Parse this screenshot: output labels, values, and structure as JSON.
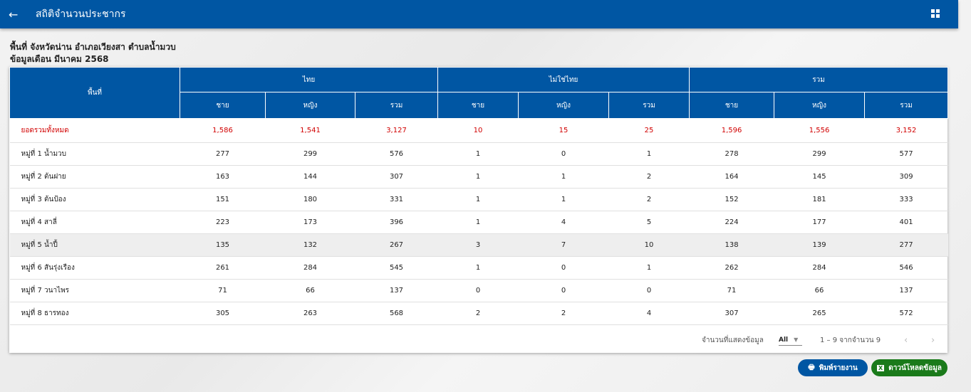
{
  "header": {
    "title": "สถิติจำนวนประชากร",
    "back_icon": "arrow-left",
    "dashboard_icon": "grid"
  },
  "info": {
    "area": "พื้นที่ จังหวัดน่าน อำเภอเวียงสา ตำบลน้ำมวบ",
    "month": "ข้อมูลเดือน มีนาคม 2568"
  },
  "table": {
    "area_header": "พื้นที่",
    "groups": [
      "ไทย",
      "ไม่ใช่ไทย",
      "รวม"
    ],
    "subheaders": [
      "ชาย",
      "หญิง",
      "รวม",
      "ชาย",
      "หญิง",
      "รวม",
      "ชาย",
      "หญิง",
      "รวม"
    ],
    "total": {
      "label": "ยอดรวมทั้งหมด",
      "values": [
        "1,586",
        "1,541",
        "3,127",
        "10",
        "15",
        "25",
        "1,596",
        "1,556",
        "3,152"
      ]
    },
    "rows": [
      {
        "label": "หมู่ที่ 1 น้ำมวบ",
        "values": [
          "277",
          "299",
          "576",
          "1",
          "0",
          "1",
          "278",
          "299",
          "577"
        ]
      },
      {
        "label": "หมู่ที่ 2 ต้นฝาย",
        "values": [
          "163",
          "144",
          "307",
          "1",
          "1",
          "2",
          "164",
          "145",
          "309"
        ]
      },
      {
        "label": "หมู่ที่ 3 ต้นป้อง",
        "values": [
          "151",
          "180",
          "331",
          "1",
          "1",
          "2",
          "152",
          "181",
          "333"
        ]
      },
      {
        "label": "หมู่ที่ 4 สาลี่",
        "values": [
          "223",
          "173",
          "396",
          "1",
          "4",
          "5",
          "224",
          "177",
          "401"
        ]
      },
      {
        "label": "หมู่ที่ 5 น้ำปี้",
        "values": [
          "135",
          "132",
          "267",
          "3",
          "7",
          "10",
          "138",
          "139",
          "277"
        ]
      },
      {
        "label": "หมู่ที่ 6 สันรุ่งเรือง",
        "values": [
          "261",
          "284",
          "545",
          "1",
          "0",
          "1",
          "262",
          "284",
          "546"
        ]
      },
      {
        "label": "หมู่ที่ 7 วนาไพร",
        "values": [
          "71",
          "66",
          "137",
          "0",
          "0",
          "0",
          "71",
          "66",
          "137"
        ]
      },
      {
        "label": "หมู่ที่ 8 ธารทอง",
        "values": [
          "305",
          "263",
          "568",
          "2",
          "2",
          "4",
          "307",
          "265",
          "572"
        ]
      }
    ]
  },
  "pagination": {
    "rows_label": "จำนวนที่แสดงข้อมูล",
    "rows_value": "All",
    "range": "1 – 9 จากจำนวน 9"
  },
  "buttons": {
    "print": "พิมพ์รายงาน",
    "download": "ดาวน์โหลดข้อมูล"
  },
  "colors": {
    "primary": "#0056a3",
    "total": "#d10000",
    "download": "#1a7a1a"
  }
}
